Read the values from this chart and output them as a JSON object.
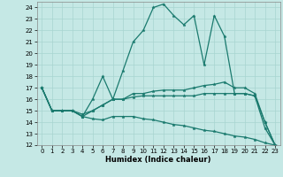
{
  "xlabel": "Humidex (Indice chaleur)",
  "xlim": [
    -0.5,
    23.5
  ],
  "ylim": [
    12,
    24.5
  ],
  "yticks": [
    12,
    13,
    14,
    15,
    16,
    17,
    18,
    19,
    20,
    21,
    22,
    23,
    24
  ],
  "xticks": [
    0,
    1,
    2,
    3,
    4,
    5,
    6,
    7,
    8,
    9,
    10,
    11,
    12,
    13,
    14,
    15,
    16,
    17,
    18,
    19,
    20,
    21,
    22,
    23
  ],
  "bg_color": "#c5e8e5",
  "line_color": "#1a7a6e",
  "grid_color": "#a8d4d0",
  "series": [
    {
      "x": [
        0,
        1,
        2,
        3,
        4,
        5,
        6,
        7,
        8,
        9,
        10,
        11,
        12,
        13,
        14,
        15,
        16,
        17,
        18,
        19,
        20,
        21,
        22,
        23
      ],
      "y": [
        17,
        15,
        15,
        15,
        14.5,
        16,
        18,
        16,
        18.5,
        21,
        22,
        24,
        24.3,
        23.3,
        22.5,
        23.3,
        19,
        23.3,
        21.5,
        16.5,
        16.5,
        16.3,
        13.5,
        12
      ]
    },
    {
      "x": [
        0,
        1,
        2,
        3,
        4,
        5,
        6,
        7,
        8,
        9,
        10,
        11,
        12,
        13,
        14,
        15,
        16,
        17,
        18,
        19,
        20,
        21,
        22,
        23
      ],
      "y": [
        17,
        15,
        15,
        15,
        14.5,
        15,
        15.5,
        16,
        16,
        16.5,
        16.5,
        16.7,
        16.8,
        16.8,
        16.8,
        17,
        17.2,
        17.3,
        17.5,
        17,
        17,
        16.5,
        14,
        12
      ]
    },
    {
      "x": [
        0,
        1,
        2,
        3,
        4,
        5,
        6,
        7,
        8,
        9,
        10,
        11,
        12,
        13,
        14,
        15,
        16,
        17,
        18,
        19,
        20,
        21,
        22,
        23
      ],
      "y": [
        17,
        15,
        15,
        15,
        14.7,
        15,
        15.5,
        16,
        16,
        16.2,
        16.3,
        16.3,
        16.3,
        16.3,
        16.3,
        16.3,
        16.5,
        16.5,
        16.5,
        16.5,
        16.5,
        16.3,
        14,
        12
      ]
    },
    {
      "x": [
        0,
        1,
        2,
        3,
        4,
        5,
        6,
        7,
        8,
        9,
        10,
        11,
        12,
        13,
        14,
        15,
        16,
        17,
        18,
        19,
        20,
        21,
        22,
        23
      ],
      "y": [
        17,
        15,
        15,
        15,
        14.5,
        14.3,
        14.2,
        14.5,
        14.5,
        14.5,
        14.3,
        14.2,
        14.0,
        13.8,
        13.7,
        13.5,
        13.3,
        13.2,
        13.0,
        12.8,
        12.7,
        12.5,
        12.2,
        12
      ]
    }
  ]
}
